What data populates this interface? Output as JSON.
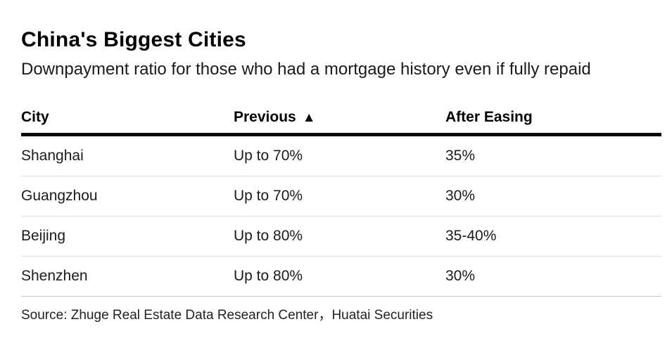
{
  "chart_data": {
    "type": "table",
    "title": "China's Biggest Cities",
    "subtitle": "Downpayment ratio for those who had a mortgage history even if fully repaid",
    "columns": [
      {
        "label": "City",
        "sort_indicator": ""
      },
      {
        "label": "Previous",
        "sort_indicator": "▲"
      },
      {
        "label": "After Easing",
        "sort_indicator": ""
      }
    ],
    "rows": [
      [
        "Shanghai",
        "Up to 70%",
        "35%"
      ],
      [
        "Guangzhou",
        "Up to 70%",
        "30%"
      ],
      [
        "Beijing",
        "Up to 80%",
        "35-40%"
      ],
      [
        "Shenzhen",
        "Up to 80%",
        "30%"
      ]
    ],
    "source": "Source: Zhuge Real Estate Data Research Center，Huatai Securities",
    "layout": {
      "legend": "none",
      "grid": "horizontal-row-separators",
      "header_rule_color": "#0a0a0a",
      "row_separator_color": "#e0e0e0",
      "bottom_rule_color": "#c6c6c6",
      "background": "#ffffff",
      "text_color": "#1b1b1b"
    }
  }
}
